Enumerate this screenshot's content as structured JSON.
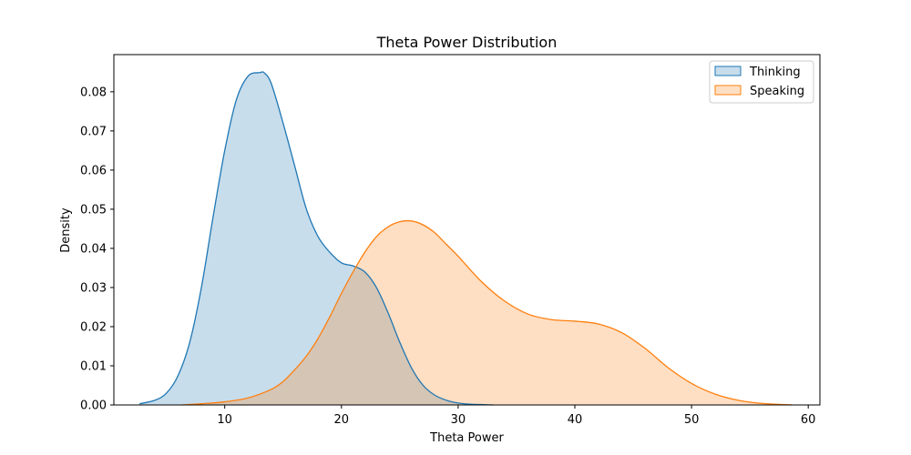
{
  "chart_data": {
    "type": "area",
    "title": "Theta Power Distribution",
    "xlabel": "Theta Power",
    "ylabel": "Density",
    "xlim": [
      0.5,
      61
    ],
    "ylim": [
      0,
      0.0895
    ],
    "xticks": [
      10,
      20,
      30,
      40,
      50,
      60
    ],
    "yticks": [
      0.0,
      0.01,
      0.02,
      0.03,
      0.04,
      0.05,
      0.06,
      0.07,
      0.08
    ],
    "grid": false,
    "legend": "top-right",
    "series": [
      {
        "name": "Thinking",
        "color": "#1f77b4",
        "x": [
          2.7,
          4,
          5,
          6,
          7,
          8,
          9,
          10,
          11,
          12,
          13,
          13.4,
          14,
          15,
          16,
          17,
          18,
          19,
          20,
          21,
          22,
          23,
          24,
          25,
          26,
          27,
          28,
          29,
          30,
          31,
          32,
          33
        ],
        "y": [
          0.0003,
          0.0012,
          0.003,
          0.0075,
          0.016,
          0.03,
          0.048,
          0.065,
          0.078,
          0.084,
          0.0849,
          0.0848,
          0.082,
          0.072,
          0.061,
          0.05,
          0.043,
          0.039,
          0.0363,
          0.0355,
          0.034,
          0.03,
          0.0235,
          0.016,
          0.0095,
          0.005,
          0.0025,
          0.0012,
          0.0005,
          0.0002,
          0.0001,
          0.0
        ]
      },
      {
        "name": "Speaking",
        "color": "#ff7f0e",
        "x": [
          6.3,
          8,
          10,
          12,
          14,
          15,
          16,
          17,
          18,
          19,
          20,
          21,
          22,
          23,
          24,
          25,
          26,
          27,
          28,
          29,
          30,
          32,
          34,
          36,
          38,
          40,
          42,
          44,
          46,
          48,
          50,
          52,
          54,
          56,
          58.6
        ],
        "y": [
          0.0,
          0.0003,
          0.0008,
          0.0018,
          0.004,
          0.006,
          0.009,
          0.0125,
          0.017,
          0.0225,
          0.0285,
          0.034,
          0.039,
          0.043,
          0.0455,
          0.0468,
          0.047,
          0.046,
          0.044,
          0.041,
          0.038,
          0.0315,
          0.0265,
          0.0232,
          0.0218,
          0.0214,
          0.0207,
          0.0185,
          0.0145,
          0.0095,
          0.0055,
          0.0028,
          0.0012,
          0.0004,
          0.0
        ]
      }
    ]
  }
}
